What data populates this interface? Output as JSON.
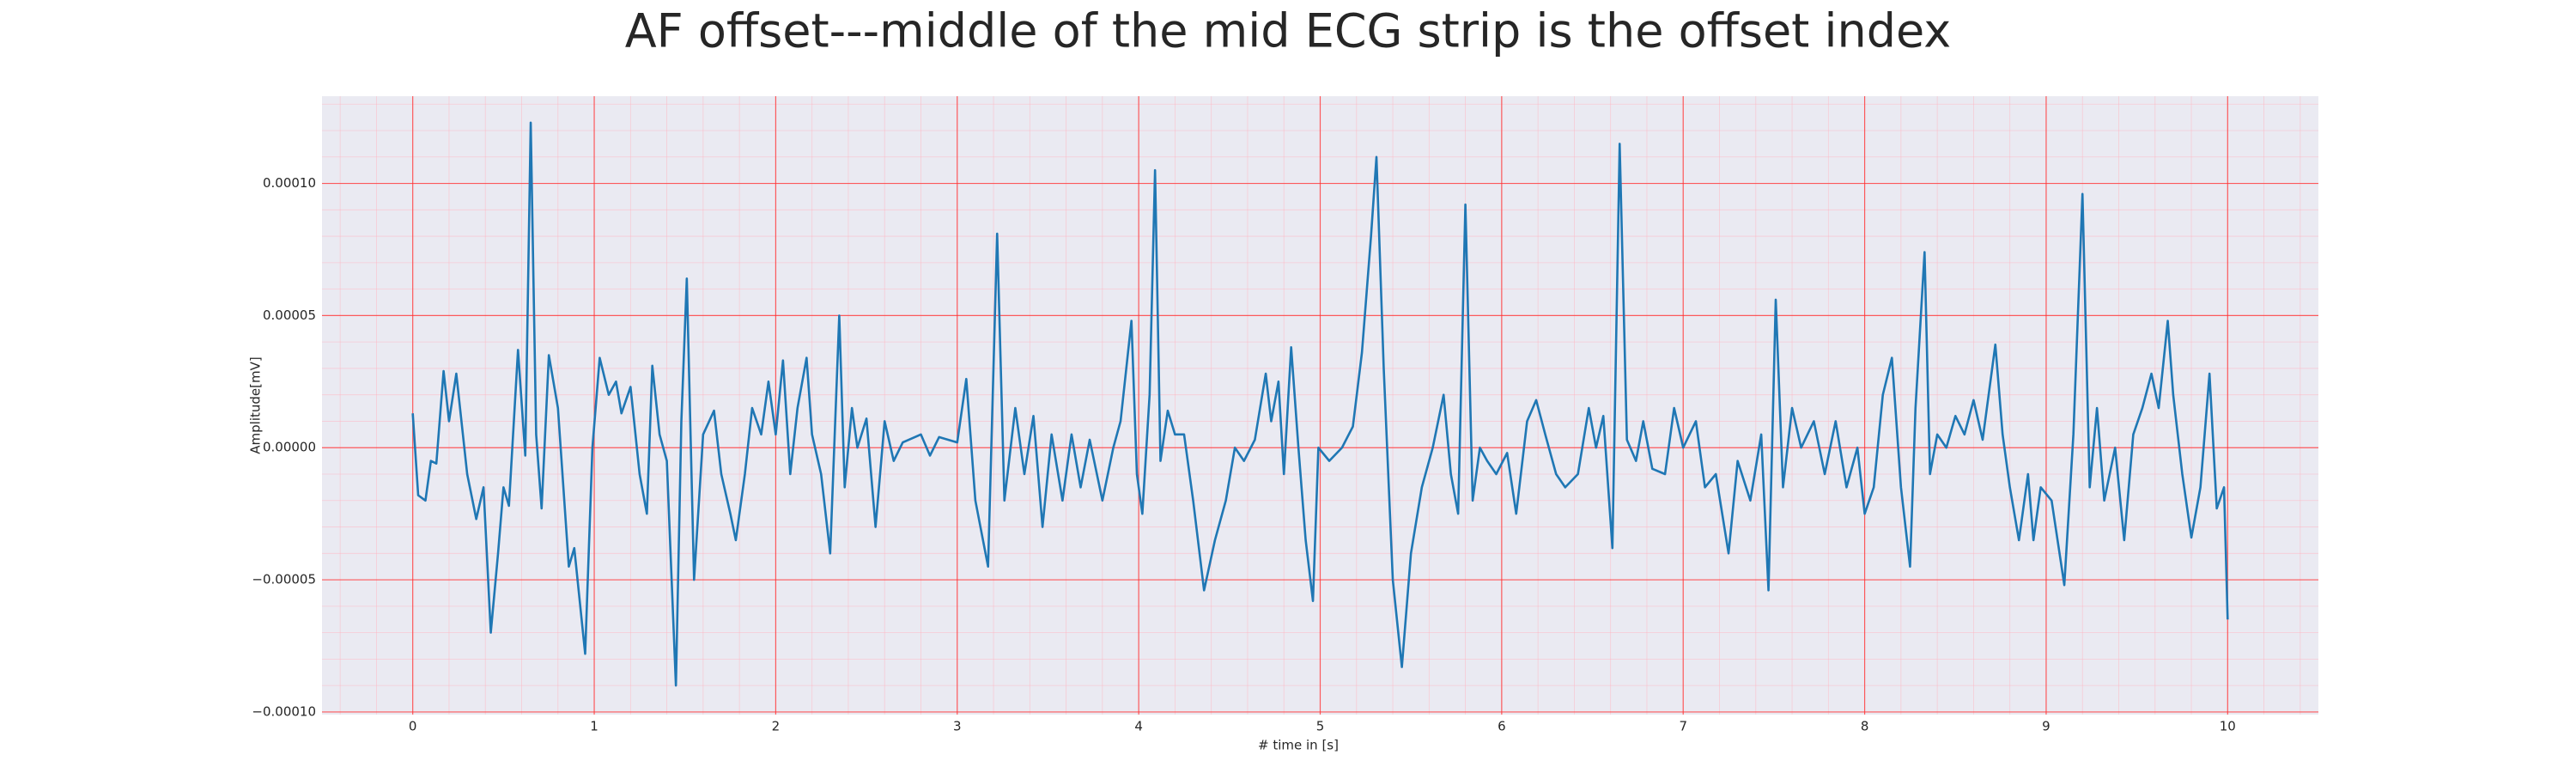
{
  "chart_data": {
    "type": "line",
    "title": "AF offset---middle of the mid ECG strip is the offset index",
    "xlabel": "# time in [s]",
    "ylabel": "Amplitude[mV]",
    "color": "#1f77b4",
    "grid": true,
    "minor_grid": true,
    "xlim": [
      -0.5,
      10.5
    ],
    "ylim": [
      -0.000101,
      0.000133
    ],
    "xticks": [
      0,
      1,
      2,
      3,
      4,
      5,
      6,
      7,
      8,
      9,
      10
    ],
    "yticks": [
      {
        "value": -0.0001,
        "label": "−0.00010"
      },
      {
        "value": -5e-05,
        "label": "−0.00005"
      },
      {
        "value": 0,
        "label": "0.00000"
      },
      {
        "value": 5e-05,
        "label": "0.00005"
      },
      {
        "value": 0.0001,
        "label": "0.00010"
      }
    ],
    "x": [
      0,
      0.03,
      0.07,
      0.1,
      0.13,
      0.17,
      0.2,
      0.24,
      0.3,
      0.35,
      0.39,
      0.43,
      0.47,
      0.5,
      0.53,
      0.58,
      0.62,
      0.65,
      0.68,
      0.71,
      0.75,
      0.8,
      0.86,
      0.89,
      0.95,
      0.99,
      1.03,
      1.08,
      1.12,
      1.15,
      1.2,
      1.25,
      1.29,
      1.32,
      1.36,
      1.4,
      1.45,
      1.48,
      1.51,
      1.55,
      1.6,
      1.66,
      1.7,
      1.75,
      1.78,
      1.83,
      1.87,
      1.92,
      1.96,
      2.0,
      2.04,
      2.08,
      2.12,
      2.17,
      2.2,
      2.25,
      2.3,
      2.35,
      2.38,
      2.42,
      2.45,
      2.5,
      2.55,
      2.6,
      2.65,
      2.7,
      2.8,
      2.85,
      2.9,
      3.0,
      3.05,
      3.1,
      3.17,
      3.22,
      3.26,
      3.32,
      3.37,
      3.42,
      3.47,
      3.52,
      3.58,
      3.63,
      3.68,
      3.73,
      3.8,
      3.86,
      3.9,
      3.96,
      3.99,
      4.02,
      4.06,
      4.09,
      4.12,
      4.16,
      4.2,
      4.25,
      4.3,
      4.36,
      4.42,
      4.48,
      4.53,
      4.58,
      4.64,
      4.7,
      4.73,
      4.77,
      4.8,
      4.84,
      4.88,
      4.92,
      4.96,
      4.99,
      5.05,
      5.12,
      5.18,
      5.23,
      5.28,
      5.31,
      5.35,
      5.4,
      5.45,
      5.5,
      5.56,
      5.62,
      5.68,
      5.72,
      5.76,
      5.8,
      5.84,
      5.88,
      5.92,
      5.97,
      6.03,
      6.08,
      6.14,
      6.19,
      6.24,
      6.3,
      6.35,
      6.42,
      6.48,
      6.52,
      6.56,
      6.61,
      6.65,
      6.69,
      6.74,
      6.78,
      6.83,
      6.9,
      6.95,
      7.0,
      7.07,
      7.12,
      7.18,
      7.25,
      7.3,
      7.37,
      7.43,
      7.47,
      7.51,
      7.55,
      7.6,
      7.65,
      7.72,
      7.78,
      7.84,
      7.9,
      7.96,
      8.0,
      8.05,
      8.1,
      8.15,
      8.2,
      8.25,
      8.28,
      8.33,
      8.36,
      8.4,
      8.45,
      8.5,
      8.55,
      8.6,
      8.65,
      8.72,
      8.76,
      8.8,
      8.85,
      8.9,
      8.93,
      8.97,
      9.03,
      9.1,
      9.15,
      9.2,
      9.24,
      9.28,
      9.32,
      9.38,
      9.43,
      9.48,
      9.53,
      9.58,
      9.62,
      9.67,
      9.7,
      9.75,
      9.8,
      9.85,
      9.9,
      9.94,
      9.98,
      10.0
    ],
    "values": [
      1.3e-05,
      -1.8e-05,
      -2e-05,
      -5e-06,
      -6e-06,
      2.9e-05,
      1e-05,
      2.8e-05,
      -1e-05,
      -2.7e-05,
      -1.5e-05,
      -7e-05,
      -4e-05,
      -1.5e-05,
      -2.2e-05,
      3.7e-05,
      -3e-06,
      0.000123,
      5e-06,
      -2.3e-05,
      3.5e-05,
      1.5e-05,
      -4.5e-05,
      -3.8e-05,
      -7.8e-05,
      0,
      3.4e-05,
      2e-05,
      2.5e-05,
      1.3e-05,
      2.3e-05,
      -1e-05,
      -2.5e-05,
      3.1e-05,
      5e-06,
      -5e-06,
      -9e-05,
      1e-05,
      6.4e-05,
      -5e-05,
      5e-06,
      1.4e-05,
      -1e-05,
      -2.5e-05,
      -3.5e-05,
      -1e-05,
      1.5e-05,
      5e-06,
      2.5e-05,
      5e-06,
      3.3e-05,
      -1e-05,
      1.5e-05,
      3.4e-05,
      5e-06,
      -1e-05,
      -4e-05,
      5e-05,
      -1.5e-05,
      1.5e-05,
      0,
      1.1e-05,
      -3e-05,
      1e-05,
      -5e-06,
      2e-06,
      5e-06,
      -3e-06,
      4e-06,
      2e-06,
      2.6e-05,
      -2e-05,
      -4.5e-05,
      8.1e-05,
      -2e-05,
      1.5e-05,
      -1e-05,
      1.2e-05,
      -3e-05,
      5e-06,
      -2e-05,
      5e-06,
      -1.5e-05,
      3e-06,
      -2e-05,
      0,
      1e-05,
      4.8e-05,
      -1e-05,
      -2.5e-05,
      2e-05,
      0.000105,
      -5e-06,
      1.4e-05,
      5e-06,
      5e-06,
      -2e-05,
      -5.4e-05,
      -3.5e-05,
      -2e-05,
      0,
      -5e-06,
      3e-06,
      2.8e-05,
      1e-05,
      2.5e-05,
      -1e-05,
      3.8e-05,
      0,
      -3.5e-05,
      -5.8e-05,
      0,
      -5e-06,
      0,
      8e-06,
      3.6e-05,
      8e-05,
      0.00011,
      3e-05,
      -5e-05,
      -8.3e-05,
      -4e-05,
      -1.5e-05,
      0,
      2e-05,
      -1e-05,
      -2.5e-05,
      9.2e-05,
      -2e-05,
      0,
      -5e-06,
      -1e-05,
      -2e-06,
      -2.5e-05,
      1e-05,
      1.8e-05,
      5e-06,
      -1e-05,
      -1.5e-05,
      -1e-05,
      1.5e-05,
      0,
      1.2e-05,
      -3.8e-05,
      0.000115,
      3e-06,
      -5e-06,
      1e-05,
      -8e-06,
      -1e-05,
      1.5e-05,
      0,
      1e-05,
      -1.5e-05,
      -1e-05,
      -4e-05,
      -5e-06,
      -2e-05,
      5e-06,
      -5.4e-05,
      5.6e-05,
      -1.5e-05,
      1.5e-05,
      0,
      1e-05,
      -1e-05,
      1e-05,
      -1.5e-05,
      0,
      -2.5e-05,
      -1.5e-05,
      2e-05,
      3.4e-05,
      -1.5e-05,
      -4.5e-05,
      1.5e-05,
      7.4e-05,
      -1e-05,
      5e-06,
      0,
      1.2e-05,
      5e-06,
      1.8e-05,
      3e-06,
      3.9e-05,
      5e-06,
      -1.5e-05,
      -3.5e-05,
      -1e-05,
      -3.5e-05,
      -1.5e-05,
      -2e-05,
      -5.2e-05,
      5e-06,
      9.6e-05,
      -1.5e-05,
      1.5e-05,
      -2e-05,
      0,
      -3.5e-05,
      5e-06,
      1.5e-05,
      2.8e-05,
      1.5e-05,
      4.8e-05,
      2e-05,
      -1e-05,
      -3.4e-05,
      -1.5e-05,
      2.8e-05,
      -2.3e-05,
      -1.5e-05,
      -6.5e-05
    ]
  }
}
